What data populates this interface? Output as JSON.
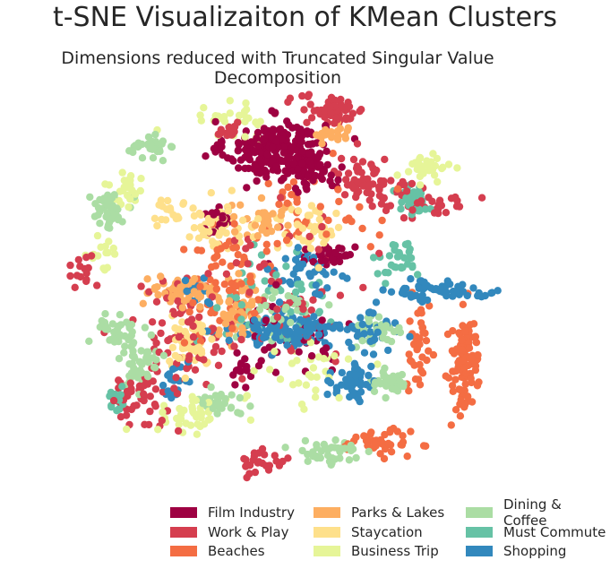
{
  "chart_data": {
    "type": "scatter",
    "title": "t-SNE Visualizaiton of KMean Clusters",
    "subtitle": "Dimensions reduced with Truncated Singular Value Decomposition",
    "xlabel": "",
    "ylabel": "",
    "grid": false,
    "axes_visible": false,
    "xlim": [
      -100,
      100
    ],
    "ylim": [
      -100,
      100
    ],
    "legend_position": "bottom-right",
    "series": [
      {
        "name": "Film Industry",
        "color": "#9e0142",
        "clusters": [
          [
            -5,
            70,
            18,
            12,
            240
          ],
          [
            12,
            60,
            8,
            8,
            50
          ],
          [
            20,
            18,
            8,
            6,
            40
          ],
          [
            -30,
            35,
            6,
            6,
            20
          ],
          [
            -20,
            -40,
            6,
            6,
            15
          ],
          [
            5,
            -20,
            20,
            20,
            40
          ]
        ]
      },
      {
        "name": "Work & Play",
        "color": "#d53e4f",
        "clusters": [
          [
            20,
            90,
            12,
            6,
            70
          ],
          [
            35,
            55,
            10,
            10,
            60
          ],
          [
            -45,
            -20,
            20,
            25,
            80
          ],
          [
            -65,
            -55,
            10,
            10,
            40
          ],
          [
            -90,
            10,
            5,
            10,
            15
          ],
          [
            -25,
            80,
            5,
            4,
            15
          ],
          [
            -10,
            -85,
            8,
            5,
            25
          ],
          [
            60,
            45,
            15,
            8,
            40
          ],
          [
            0,
            0,
            30,
            30,
            60
          ]
        ]
      },
      {
        "name": "Beaches",
        "color": "#f46d43",
        "clusters": [
          [
            78,
            -35,
            6,
            20,
            100
          ],
          [
            58,
            -30,
            4,
            20,
            40
          ],
          [
            40,
            -75,
            12,
            5,
            40
          ],
          [
            10,
            40,
            25,
            20,
            40
          ],
          [
            -25,
            -5,
            15,
            15,
            40
          ],
          [
            -25,
            20,
            15,
            10,
            30
          ]
        ]
      },
      {
        "name": "Parks & Lakes",
        "color": "#fdae61",
        "clusters": [
          [
            -45,
            0,
            12,
            6,
            70
          ],
          [
            -20,
            -10,
            8,
            12,
            60
          ],
          [
            20,
            78,
            8,
            5,
            20
          ],
          [
            -10,
            35,
            12,
            8,
            30
          ]
        ]
      },
      {
        "name": "Staycation",
        "color": "#fee08b",
        "clusters": [
          [
            -42,
            -25,
            8,
            10,
            50
          ],
          [
            -30,
            30,
            15,
            10,
            50
          ],
          [
            10,
            30,
            12,
            10,
            40
          ],
          [
            -50,
            40,
            8,
            6,
            20
          ]
        ]
      },
      {
        "name": "Business Trip",
        "color": "#e6f598",
        "clusters": [
          [
            -40,
            -60,
            15,
            8,
            40
          ],
          [
            -20,
            85,
            15,
            8,
            30
          ],
          [
            60,
            60,
            8,
            5,
            30
          ],
          [
            -70,
            50,
            6,
            8,
            30
          ],
          [
            10,
            -40,
            20,
            15,
            30
          ],
          [
            -80,
            20,
            5,
            8,
            15
          ]
        ]
      },
      {
        "name": "Dining & Coffee",
        "color": "#abdda4",
        "clusters": [
          [
            -78,
            40,
            6,
            8,
            50
          ],
          [
            -65,
            -35,
            8,
            12,
            50
          ],
          [
            45,
            -45,
            8,
            6,
            40
          ],
          [
            -75,
            -20,
            6,
            8,
            30
          ],
          [
            -30,
            -55,
            10,
            6,
            30
          ],
          [
            40,
            -20,
            8,
            8,
            30
          ],
          [
            -60,
            70,
            10,
            6,
            30
          ],
          [
            20,
            -80,
            15,
            6,
            40
          ],
          [
            -5,
            -10,
            15,
            12,
            40
          ]
        ]
      },
      {
        "name": "Must Commute",
        "color": "#66c2a5",
        "clusters": [
          [
            55,
            45,
            5,
            6,
            40
          ],
          [
            50,
            15,
            8,
            8,
            30
          ],
          [
            -75,
            -55,
            5,
            5,
            15
          ],
          [
            -5,
            0,
            25,
            25,
            40
          ]
        ]
      },
      {
        "name": "Shopping",
        "color": "#3288bd",
        "clusters": [
          [
            0,
            -20,
            22,
            6,
            120
          ],
          [
            30,
            -45,
            8,
            8,
            50
          ],
          [
            70,
            0,
            20,
            4,
            60
          ],
          [
            10,
            10,
            12,
            12,
            40
          ],
          [
            -50,
            -45,
            6,
            6,
            20
          ],
          [
            35,
            -20,
            10,
            10,
            30
          ],
          [
            -40,
            0,
            6,
            6,
            15
          ]
        ]
      }
    ]
  }
}
